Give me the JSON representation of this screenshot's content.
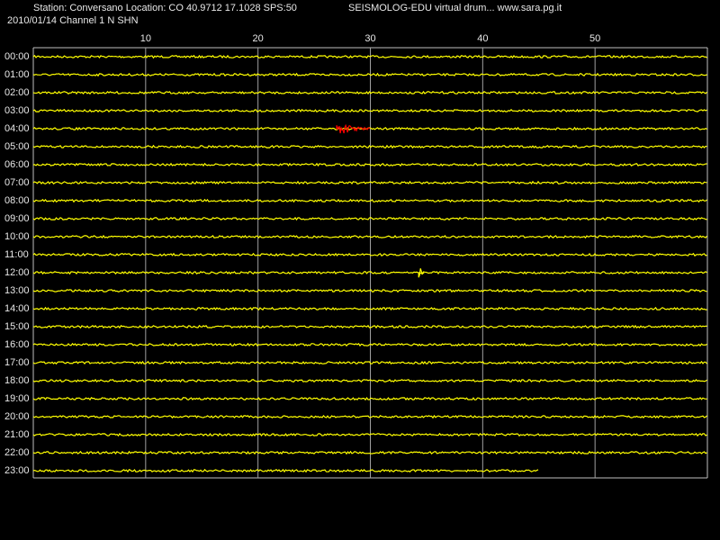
{
  "header": {
    "station": "Station: Conversano Location: CO 40.9712 17.1028 SPS:50",
    "app": "SEISMOLOG-EDU virtual drum... www.sara.pg.it",
    "date": "2010/01/14  Channel 1 N SHN"
  },
  "chart_data": {
    "type": "drum",
    "color": "#ffff00",
    "grid": true,
    "xlim": [
      0,
      60
    ],
    "xticks": [
      10,
      20,
      30,
      40,
      50
    ],
    "rows": [
      {
        "label": "00:00",
        "end": 60
      },
      {
        "label": "01:00",
        "end": 60
      },
      {
        "label": "02:00",
        "end": 60
      },
      {
        "label": "03:00",
        "end": 60
      },
      {
        "label": "04:00",
        "end": 60,
        "event": {
          "start": 27,
          "end": 30,
          "color": "#ff0000"
        }
      },
      {
        "label": "05:00",
        "end": 60
      },
      {
        "label": "06:00",
        "end": 60
      },
      {
        "label": "07:00",
        "end": 60
      },
      {
        "label": "08:00",
        "end": 60
      },
      {
        "label": "09:00",
        "end": 60
      },
      {
        "label": "10:00",
        "end": 60
      },
      {
        "label": "11:00",
        "end": 60
      },
      {
        "label": "12:00",
        "end": 60,
        "event": {
          "start": 34.3,
          "end": 34.8,
          "color": "#ffff00"
        }
      },
      {
        "label": "13:00",
        "end": 60
      },
      {
        "label": "14:00",
        "end": 60
      },
      {
        "label": "15:00",
        "end": 60
      },
      {
        "label": "16:00",
        "end": 60
      },
      {
        "label": "17:00",
        "end": 60
      },
      {
        "label": "18:00",
        "end": 60
      },
      {
        "label": "19:00",
        "end": 60
      },
      {
        "label": "20:00",
        "end": 60
      },
      {
        "label": "21:00",
        "end": 60
      },
      {
        "label": "22:00",
        "end": 60
      },
      {
        "label": "23:00",
        "end": 45
      }
    ]
  }
}
